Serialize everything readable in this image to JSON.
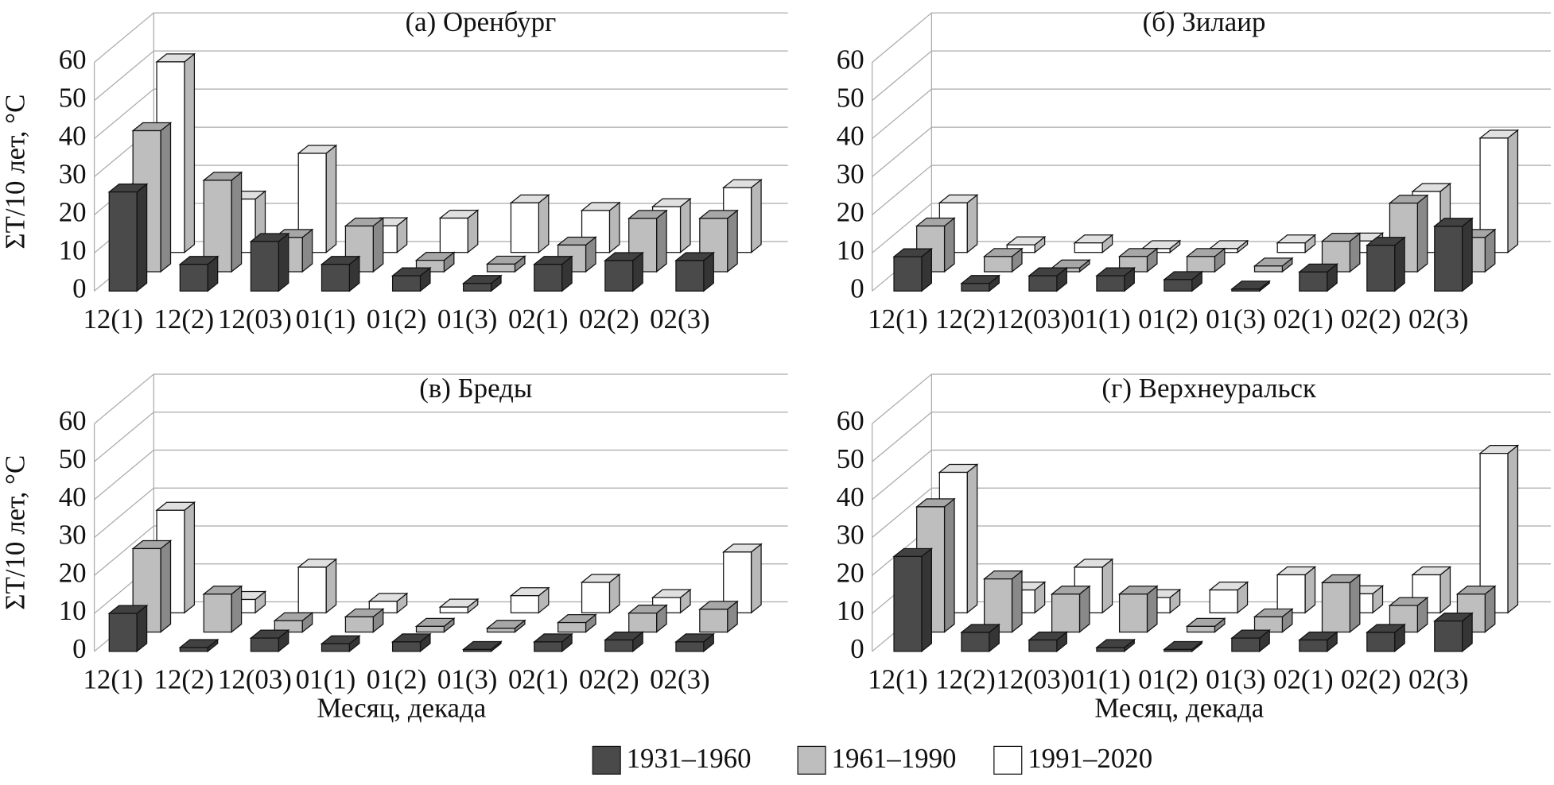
{
  "legend": [
    {
      "name": "1931–1960",
      "color": "#4a4a4a"
    },
    {
      "name": "1961–1990",
      "color": "#bebebe"
    },
    {
      "name": "1991–2020",
      "color": "#ffffff"
    }
  ],
  "chart_data": [
    {
      "type": "bar",
      "title": "(а) Оренбург",
      "ylabel": "ΣT/10 лет, °C",
      "categories": [
        "12(1)",
        "12(2)",
        "12(03)",
        "01(1)",
        "01(2)",
        "01(3)",
        "02(1)",
        "02(2)",
        "02(3)"
      ],
      "series": [
        {
          "values": [
            26,
            7,
            13,
            7,
            4,
            2,
            7,
            8,
            8
          ]
        },
        {
          "values": [
            37,
            24,
            9,
            12,
            3,
            2,
            7,
            14,
            14
          ]
        },
        {
          "values": [
            50,
            14,
            26,
            7,
            9,
            13,
            11,
            12,
            17
          ]
        }
      ],
      "ylim": [
        0,
        60
      ],
      "yticks": [
        0,
        10,
        20,
        30,
        40,
        50,
        60
      ]
    },
    {
      "type": "bar",
      "title": "(б) Зилаир",
      "categories": [
        "12(1)",
        "12(2)",
        "12(03)",
        "01(1)",
        "01(2)",
        "01(3)",
        "02(1)",
        "02(2)",
        "02(3)"
      ],
      "series": [
        {
          "values": [
            9,
            2,
            4,
            4,
            3,
            0.5,
            5,
            12,
            17
          ]
        },
        {
          "values": [
            12,
            4,
            1,
            4,
            4,
            1.5,
            8,
            18,
            9
          ]
        },
        {
          "values": [
            13,
            2,
            2.5,
            1,
            1,
            2.5,
            3,
            16,
            30
          ]
        }
      ],
      "ylim": [
        0,
        60
      ],
      "yticks": [
        0,
        10,
        20,
        30,
        40,
        50,
        60
      ]
    },
    {
      "type": "bar",
      "title": "(в) Бреды",
      "ylabel": "ΣT/10 лет, °C",
      "xlabel": "Месяц, декада",
      "categories": [
        "12(1)",
        "12(2)",
        "12(03)",
        "01(1)",
        "01(2)",
        "01(3)",
        "02(1)",
        "02(2)",
        "02(3)"
      ],
      "series": [
        {
          "values": [
            10,
            1,
            3.5,
            2,
            2.5,
            0.5,
            2.5,
            3,
            2.5
          ]
        },
        {
          "values": [
            22,
            10,
            3,
            4,
            1.5,
            1,
            2.5,
            5,
            6
          ]
        },
        {
          "values": [
            27,
            3.5,
            12,
            3,
            1.5,
            4.5,
            8,
            4,
            16
          ]
        }
      ],
      "ylim": [
        0,
        60
      ],
      "yticks": [
        0,
        10,
        20,
        30,
        40,
        50,
        60
      ]
    },
    {
      "type": "bar",
      "title": "(г) Верхнеуральск",
      "xlabel": "Месяц, декада",
      "categories": [
        "12(1)",
        "12(2)",
        "12(03)",
        "01(1)",
        "01(2)",
        "01(3)",
        "02(1)",
        "02(2)",
        "02(3)"
      ],
      "series": [
        {
          "values": [
            25,
            5,
            3,
            1,
            0.5,
            3.5,
            3,
            5,
            8
          ]
        },
        {
          "values": [
            33,
            14,
            10,
            10,
            1.5,
            4,
            13,
            7,
            10
          ]
        },
        {
          "values": [
            37,
            6,
            12,
            4,
            6,
            10,
            5,
            10,
            42
          ]
        }
      ],
      "ylim": [
        0,
        60
      ],
      "yticks": [
        0,
        10,
        20,
        30,
        40,
        50,
        60
      ]
    }
  ]
}
